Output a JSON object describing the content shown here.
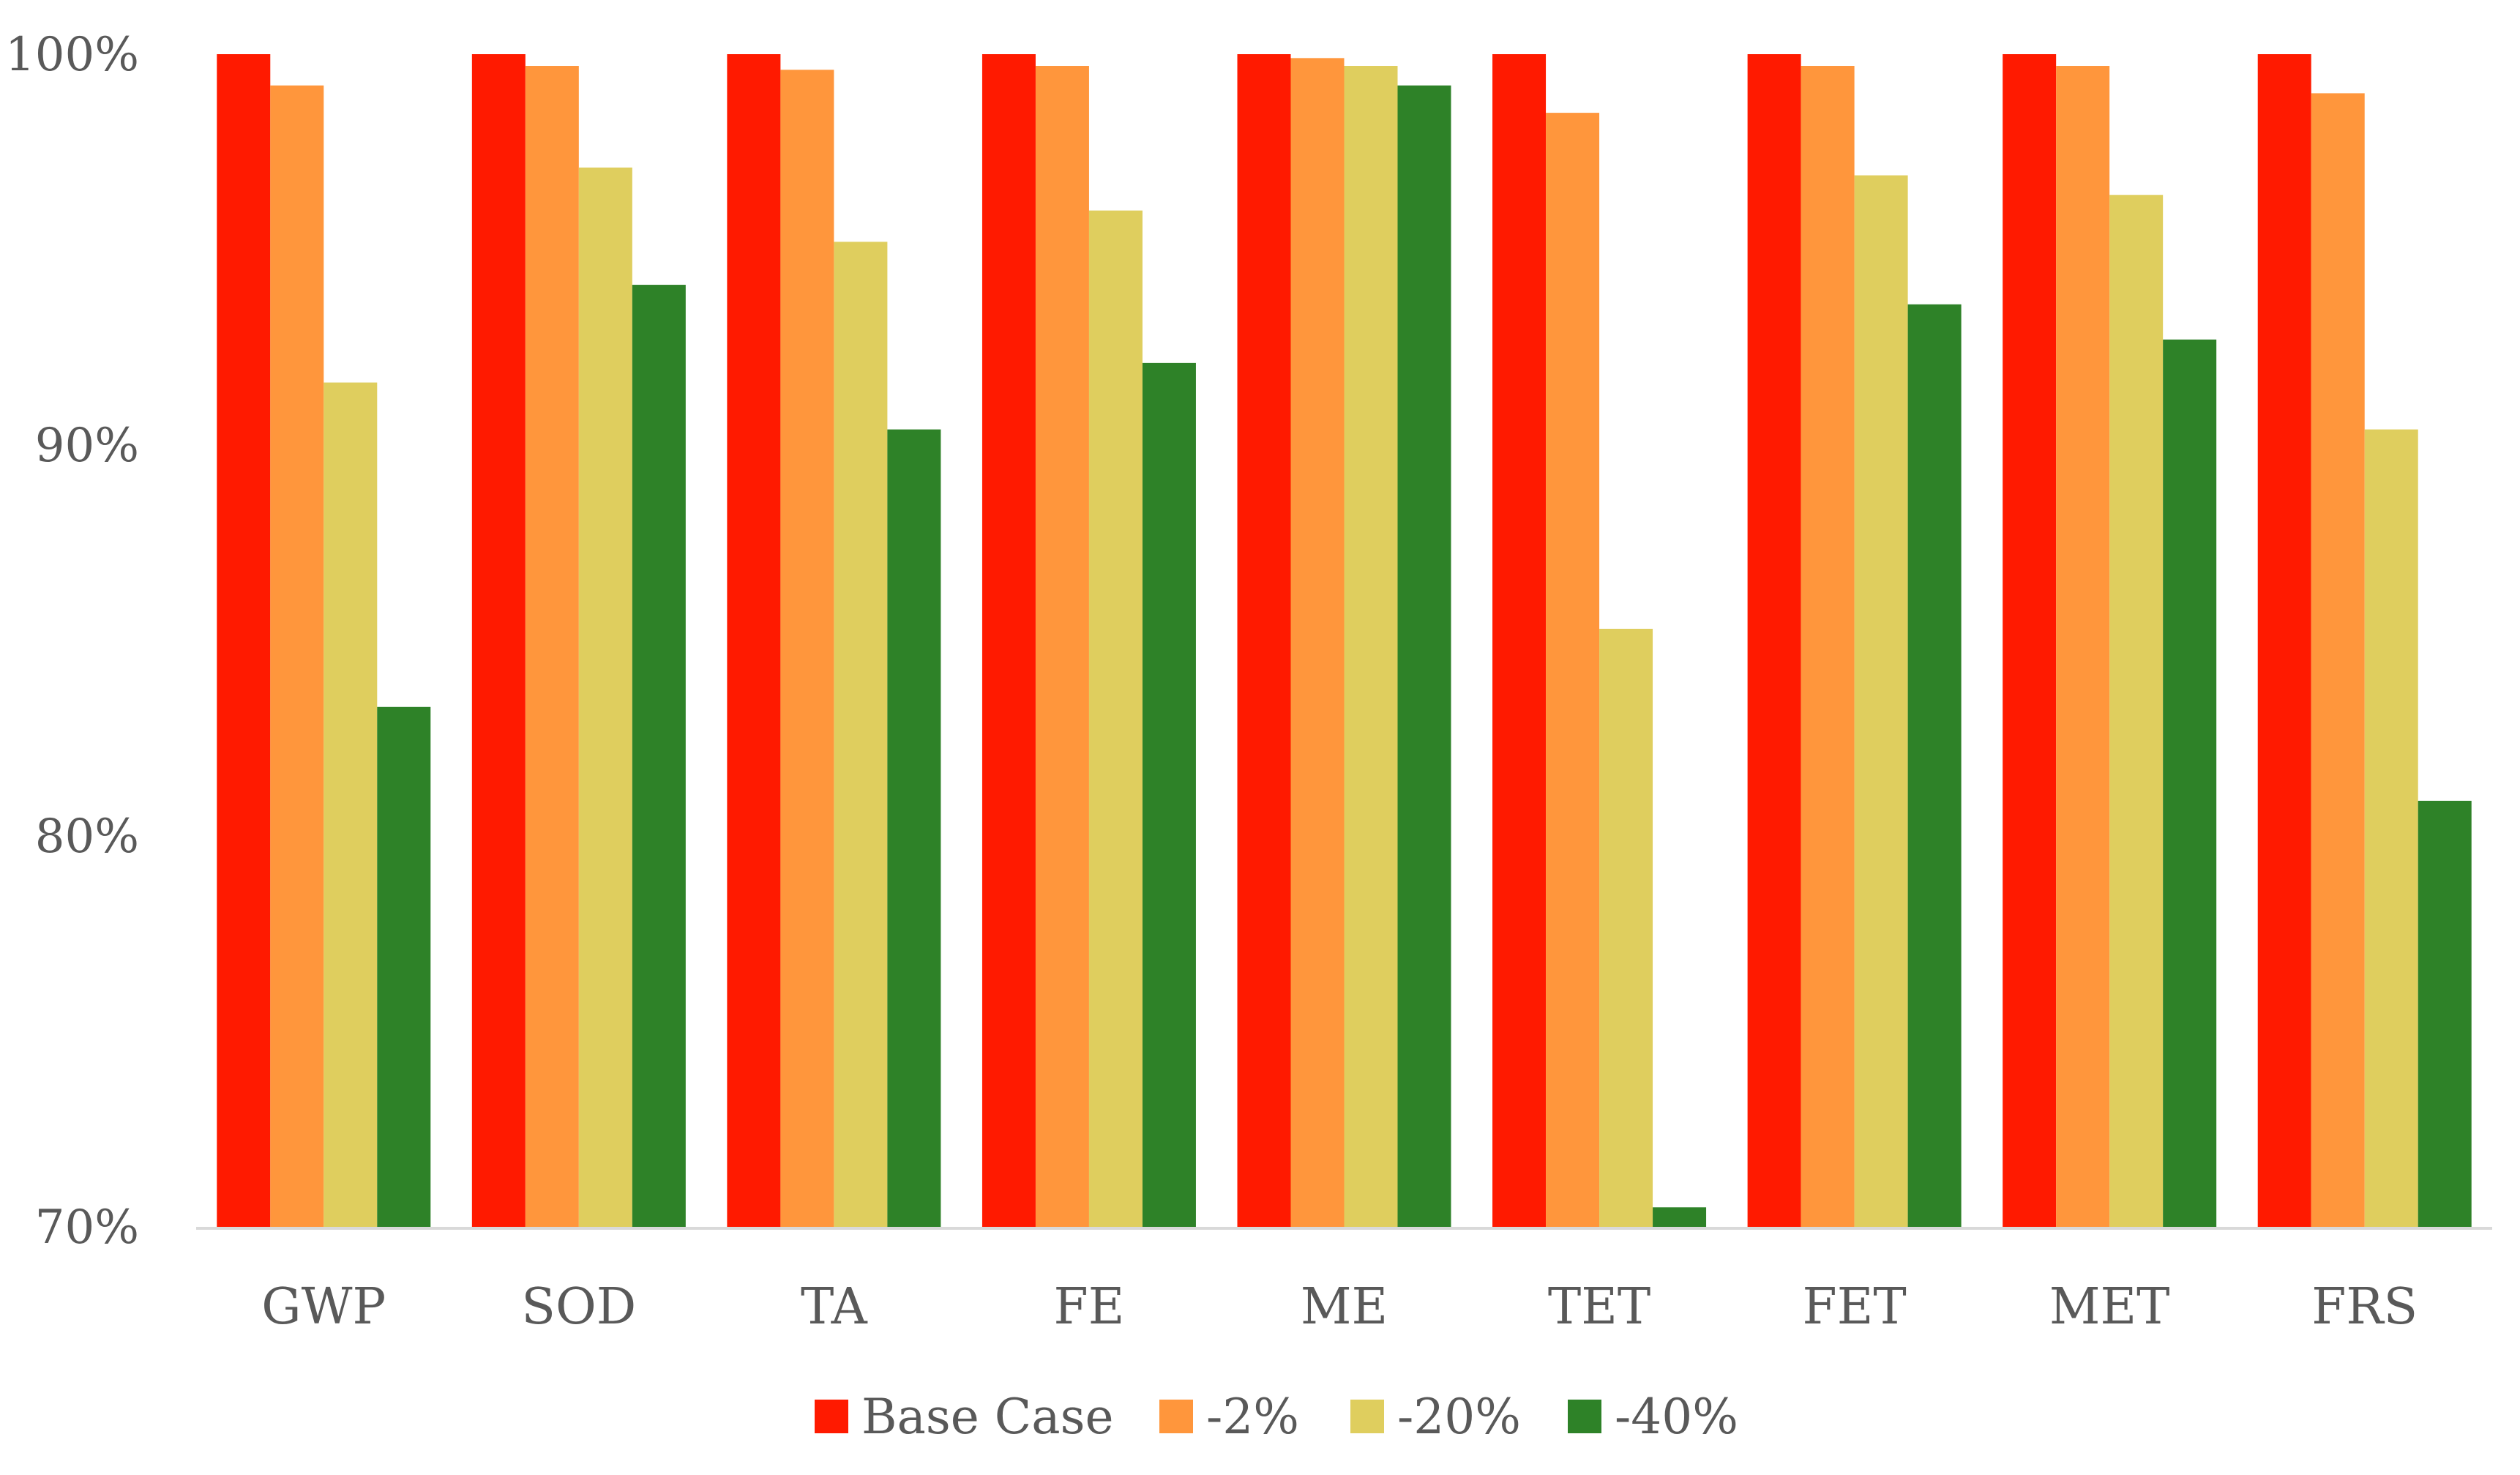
{
  "chart_data": {
    "type": "bar",
    "title": "",
    "xlabel": "",
    "ylabel": "",
    "ylim": [
      70,
      100
    ],
    "yticks": [
      70,
      80,
      90,
      100
    ],
    "ytick_labels": [
      "70%",
      "80%",
      "90%",
      "100%"
    ],
    "categories": [
      "GWP",
      "SOD",
      "TA",
      "FE",
      "ME",
      "TET",
      "FET",
      "MET",
      "FRS"
    ],
    "series": [
      {
        "name": "Base Case",
        "color": "#ff1a00",
        "values": [
          100,
          100,
          100,
          100,
          100,
          100,
          100,
          100,
          100
        ]
      },
      {
        "name": "-2%",
        "color": "#ff963c",
        "values": [
          99.2,
          99.7,
          99.6,
          99.7,
          99.9,
          98.5,
          99.7,
          99.7,
          99.0
        ]
      },
      {
        "name": "-20%",
        "color": "#dfce5e",
        "values": [
          91.6,
          97.1,
          95.2,
          96.0,
          99.7,
          85.3,
          96.9,
          96.4,
          90.4
        ]
      },
      {
        "name": "-40%",
        "color": "#2e8228",
        "values": [
          83.3,
          94.1,
          90.4,
          92.1,
          99.2,
          70.5,
          93.6,
          92.7,
          80.9
        ]
      }
    ],
    "grid": false,
    "legend_position": "bottom"
  }
}
